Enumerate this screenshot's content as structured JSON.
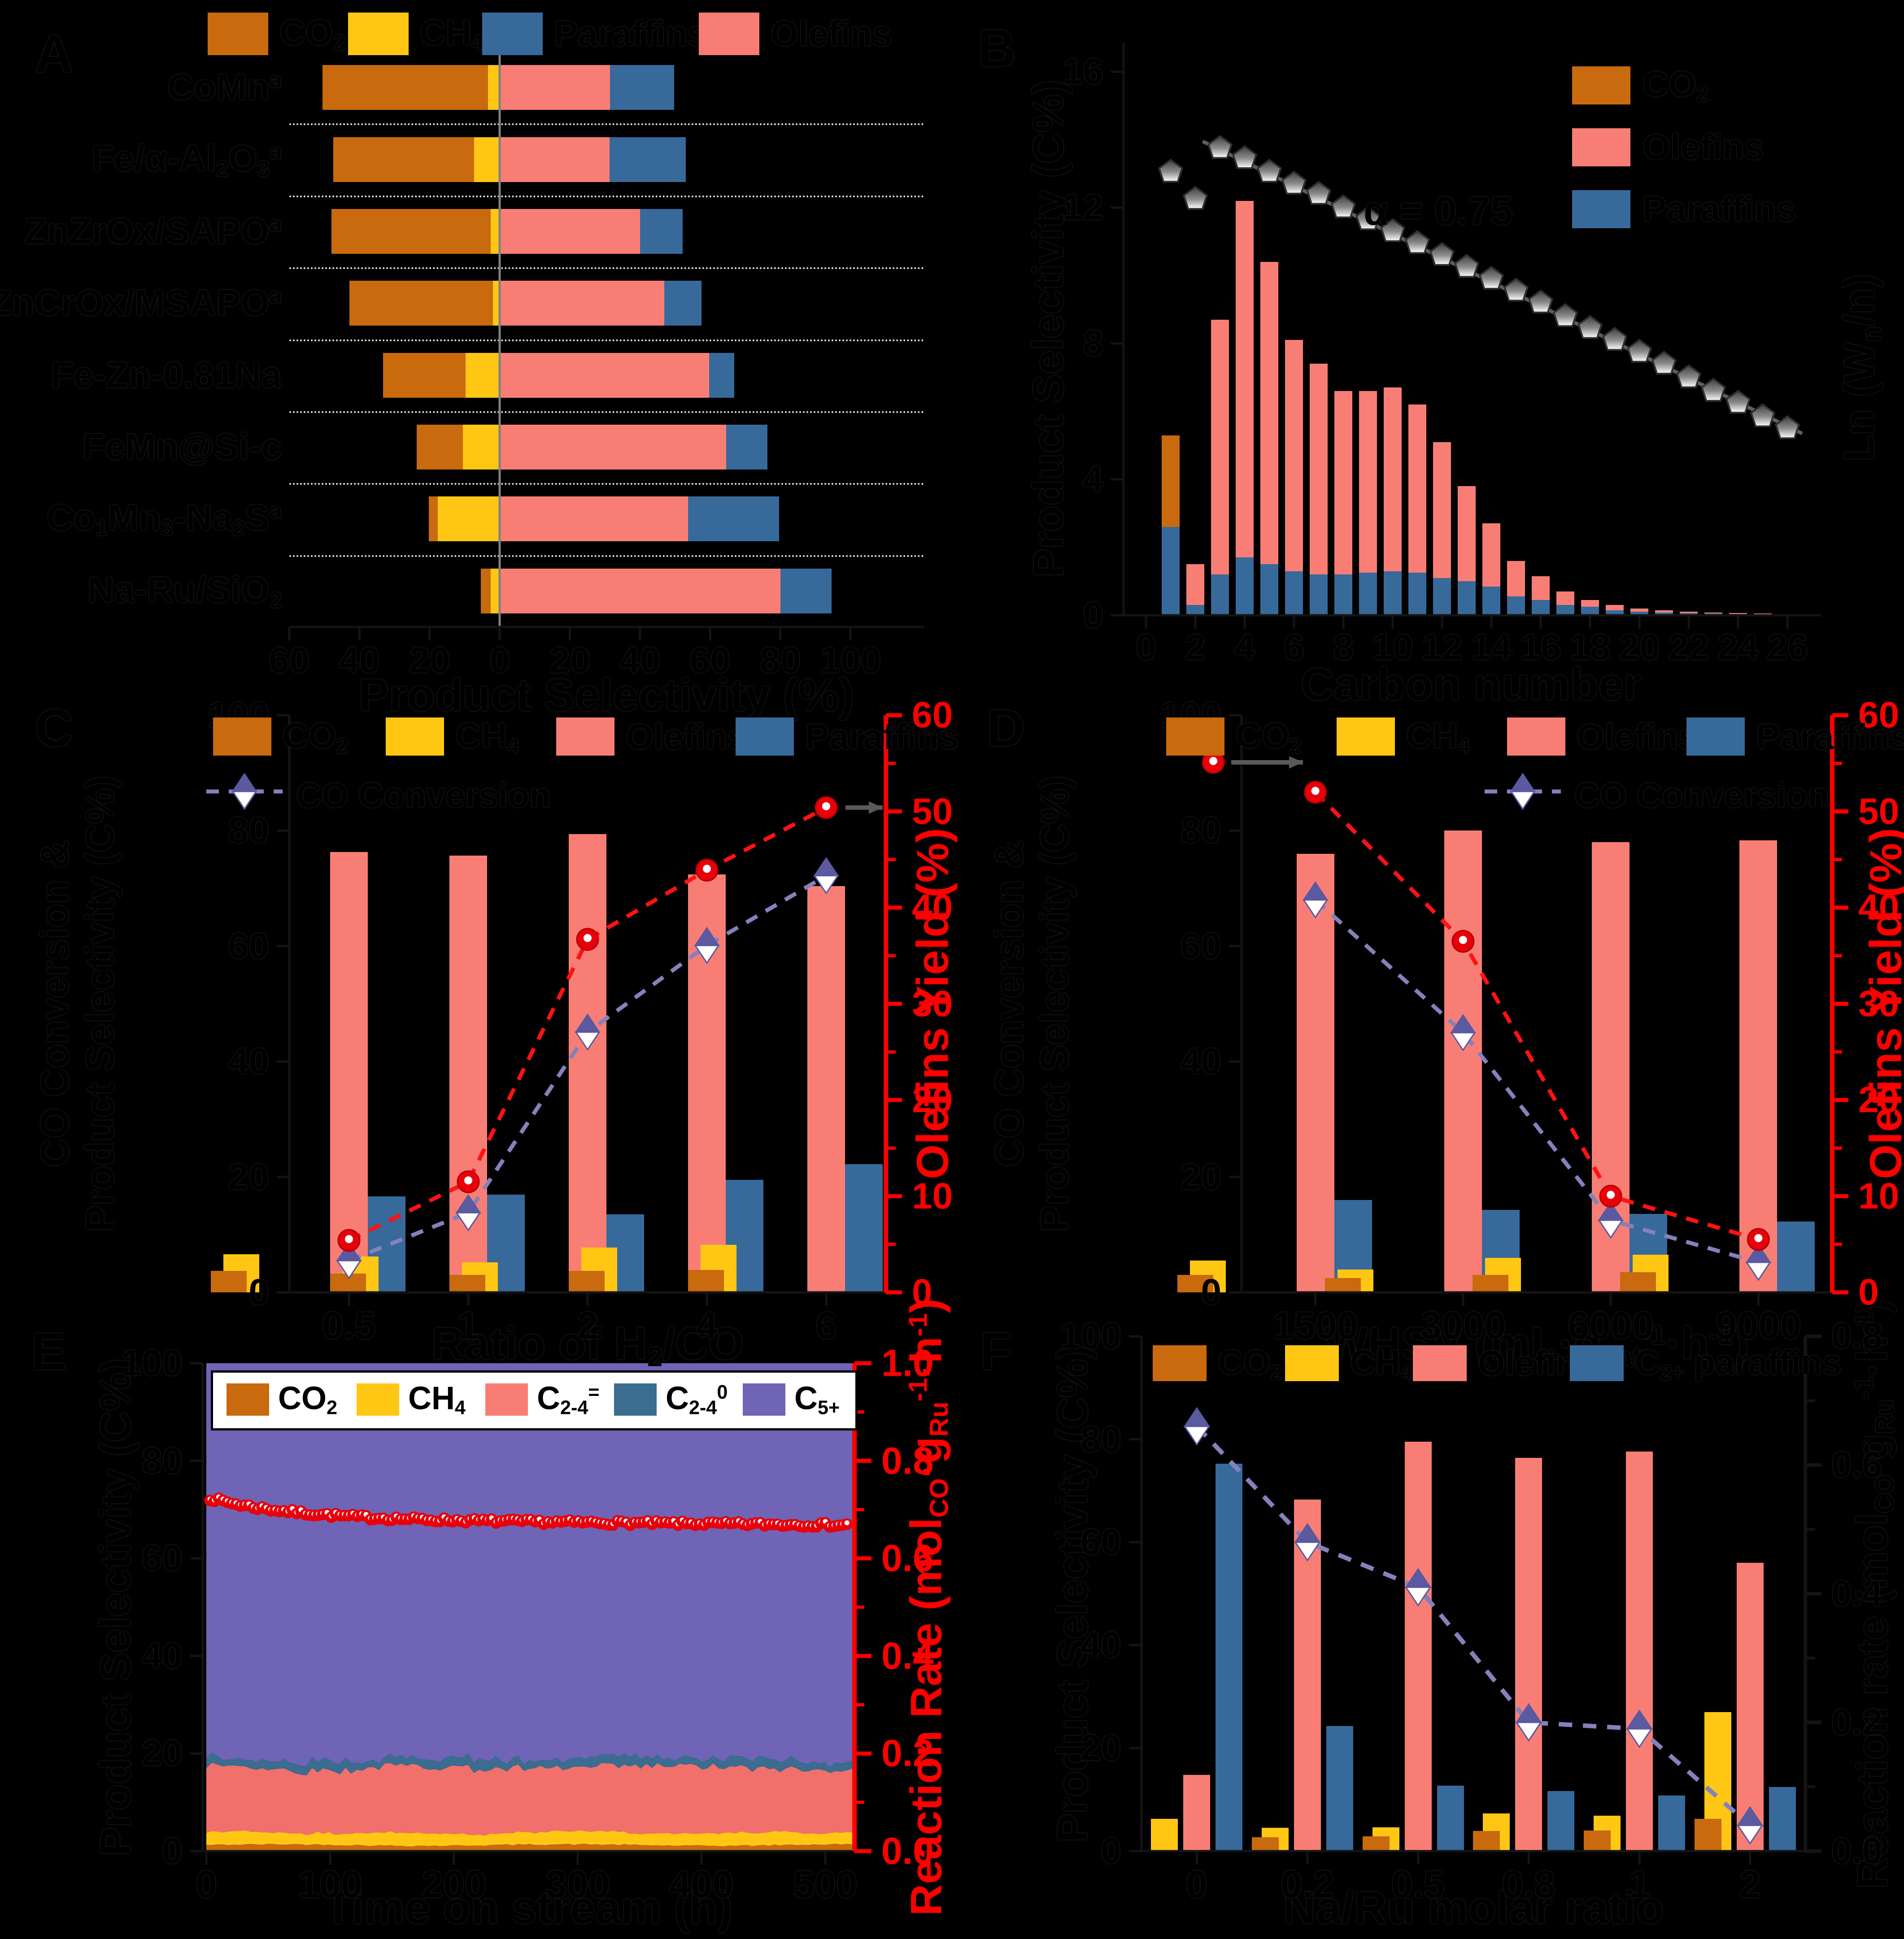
{
  "figure": {
    "background": "#000000"
  },
  "colors": {
    "co2": "#C86A0D",
    "ch4": "#FFC714",
    "olefins": "#F87E75",
    "paraffins": "#38699B",
    "c5plus": "#6F64B6",
    "c24_paraffin_band": "#3A6D8F",
    "conversion_line": "#8481BC",
    "diamond_fill": "#5B59A0",
    "yield_line": "#FF1212",
    "marker_red": "#E8000B",
    "axis_red": "#FF0000",
    "asf_gray": "#5E5E5E",
    "arrow_gray": "#595959",
    "zero_line_gray": "#808080"
  },
  "chart_data": [
    {
      "id": "A",
      "letter": "A",
      "type": "bar",
      "orientation": "horizontal-diverging",
      "xlabel": "Product Selectivity (%)",
      "x_ticks": [
        -60,
        -40,
        -20,
        0,
        20,
        40,
        60,
        80,
        100
      ],
      "x_tick_labels": [
        "60",
        "40",
        "20",
        "0",
        "20",
        "40",
        "60",
        "80",
        "100"
      ],
      "legend": [
        {
          "label": "CO_{2}",
          "color": "co2"
        },
        {
          "label": "CH_{4}",
          "color": "ch4"
        },
        {
          "label": "Paraffins",
          "color": "paraffins"
        },
        {
          "label": "Olefins",
          "color": "olefins"
        }
      ],
      "categories": [
        "CoMn^{a}",
        "Fe/α-Al_{2}O_{3}^{a}",
        "ZnZrOx/SAPO^{a}",
        "ZnCrOx/MSAPO^{a}",
        "Fe-Zn-0.81Na",
        "FeMn@Si-c",
        "Co_{1}Mn_{3}-Na_{2}S^{a}",
        "Na-Ru/SiO_{2}"
      ],
      "series": {
        "CO2": [
          47.2,
          40.1,
          45.4,
          40.9,
          23.5,
          13.1,
          2.6,
          2.8
        ],
        "CH4": [
          3.3,
          7.3,
          2.6,
          1.9,
          9.7,
          10.5,
          17.6,
          2.6
        ],
        "Olefins": [
          31.5,
          31.3,
          40.0,
          46.9,
          59.7,
          64.6,
          53.7,
          80.0
        ],
        "Paraffins": [
          18.2,
          21.8,
          12.2,
          10.6,
          7.2,
          11.8,
          26.0,
          14.6
        ]
      }
    },
    {
      "id": "B",
      "letter": "B",
      "type": "bar",
      "subtype": "stacked-with-asf-scatter",
      "xlabel": "Carbon number",
      "ylabel": "Product Selectivity (C%)",
      "ylabel_right": "Ln (W_{n}/n)",
      "annotation": "α = 0.75",
      "y_ticks": [
        0,
        4,
        8,
        12,
        16
      ],
      "x_ticks": [
        0,
        2,
        4,
        6,
        8,
        10,
        12,
        14,
        16,
        18,
        20,
        22,
        24,
        26
      ],
      "legend": [
        {
          "label": "CO_{2}",
          "color": "co2"
        },
        {
          "label": "Olefins",
          "color": "olefins"
        },
        {
          "label": "Paraffins",
          "color": "paraffins"
        }
      ],
      "carbon_numbers": [
        1,
        2,
        3,
        4,
        5,
        6,
        7,
        8,
        9,
        10,
        11,
        12,
        13,
        14,
        15,
        16,
        17,
        18,
        19,
        20,
        21,
        22,
        23,
        24,
        25,
        26
      ],
      "paraffins": [
        2.6,
        0.3,
        1.2,
        1.7,
        1.5,
        1.3,
        1.2,
        1.2,
        1.25,
        1.3,
        1.25,
        1.1,
        1.0,
        0.85,
        0.55,
        0.45,
        0.3,
        0.25,
        0.15,
        0.1,
        0.08,
        0.06,
        0.05,
        0.04,
        0.03,
        0.02
      ],
      "olefins": [
        0,
        1.2,
        7.5,
        10.5,
        8.9,
        6.8,
        6.2,
        5.4,
        5.35,
        5.4,
        4.95,
        4.0,
        2.8,
        1.85,
        1.05,
        0.7,
        0.4,
        0.2,
        0.15,
        0.1,
        0.06,
        0.04,
        0.03,
        0.02,
        0.02,
        0.01
      ],
      "co2_on_c1": 2.7,
      "asf_points": [
        [
          1,
          13.05
        ],
        [
          2,
          12.25
        ],
        [
          3,
          13.75
        ],
        [
          4,
          13.45
        ],
        [
          5,
          13.05
        ],
        [
          6,
          12.7
        ],
        [
          7,
          12.4
        ],
        [
          8,
          12.0
        ],
        [
          9,
          11.65
        ],
        [
          10,
          11.3
        ],
        [
          11,
          10.95
        ],
        [
          12,
          10.6
        ],
        [
          13,
          10.25
        ],
        [
          14,
          9.9
        ],
        [
          15,
          9.55
        ],
        [
          16,
          9.2
        ],
        [
          17,
          8.8
        ],
        [
          18,
          8.45
        ],
        [
          19,
          8.1
        ],
        [
          20,
          7.75
        ],
        [
          21,
          7.4
        ],
        [
          22,
          7.0
        ],
        [
          23,
          6.6
        ],
        [
          24,
          6.25
        ],
        [
          25,
          5.85
        ],
        [
          26,
          5.5
        ]
      ],
      "asf_line": {
        "x1": 2.3,
        "y1": 13.95,
        "x2": 26.6,
        "y2": 5.35
      }
    },
    {
      "id": "C",
      "letter": "C",
      "type": "bar",
      "subtype": "grouped-dual-axis",
      "xlabel": "Ratio of H_{2}/CO",
      "ylabel_left_line1": "CO Conversion &",
      "ylabel_left_line2": "Product Selectivity (C%)",
      "ylabel_right": "Olefins Yield (%)",
      "y_ticks_left": [
        0,
        20,
        40,
        60,
        80,
        100
      ],
      "y_ticks_right": [
        0,
        10,
        20,
        30,
        40,
        50,
        60
      ],
      "categories": [
        "0.5",
        "1",
        "2",
        "4",
        "6"
      ],
      "legend": [
        {
          "label": "CO_{2}",
          "color": "co2"
        },
        {
          "label": "CH_{4}",
          "color": "ch4"
        },
        {
          "label": "Olefins",
          "color": "olefins"
        },
        {
          "label": "Paraffins",
          "color": "paraffins"
        }
      ],
      "legend2_label": "CO Conversion",
      "series": {
        "CO2": [
          3.7,
          3.3,
          3.0,
          3.7,
          3.9
        ],
        "CH4": [
          6.6,
          6.2,
          5.2,
          7.8,
          8.2
        ],
        "Olefins": [
          76.3,
          75.7,
          79.4,
          72.4,
          70.4
        ],
        "Paraffins": [
          16.6,
          16.9,
          13.5,
          19.5,
          22.2
        ]
      },
      "co_conversion": [
        5.5,
        13.8,
        45.1,
        60.1,
        72.2
      ],
      "olefins_yield": [
        5.4,
        11.5,
        36.7,
        43.9,
        50.4
      ]
    },
    {
      "id": "D",
      "letter": "D",
      "type": "bar",
      "subtype": "grouped-dual-axis",
      "xlabel": "WHSV (mL·g_{cat}^{-1}·h^{-1})",
      "ylabel_left_line1": "CO Conversion &",
      "ylabel_left_line2": "Product Selectivity (C%)",
      "ylabel_right": "Olefins Yield (%)",
      "y_ticks_left": [
        0,
        20,
        40,
        60,
        80,
        100
      ],
      "y_ticks_right": [
        0,
        10,
        20,
        30,
        40,
        50,
        60
      ],
      "categories": [
        "1500",
        "3000",
        "6000",
        "9000"
      ],
      "legend": [
        {
          "label": "CO_{2}",
          "color": "co2"
        },
        {
          "label": "CH_{4}",
          "color": "ch4"
        },
        {
          "label": "Olefins",
          "color": "olefins"
        },
        {
          "label": "Paraffins",
          "color": "paraffins"
        }
      ],
      "legend2_label": "CO Conversion",
      "series": {
        "CO2": [
          3.0,
          2.5,
          3.0,
          3.5
        ],
        "CH4": [
          5.5,
          4.0,
          6.0,
          6.5
        ],
        "Olefins": [
          76.0,
          80.0,
          78.0,
          78.3
        ],
        "Paraffins": [
          16.0,
          14.3,
          13.6,
          12.3
        ]
      },
      "co_conversion": [
        68,
        45,
        12.5,
        5.2
      ],
      "olefins_yield": [
        52,
        36.5,
        10,
        5.5
      ]
    },
    {
      "id": "E",
      "letter": "E",
      "type": "area",
      "subtype": "stacked-area-with-rate-scatter",
      "xlabel": "Time on stream (h)",
      "ylabel": "Product Selectivity (C%)",
      "ylabel_right": "Reaction Rate (mol_{CO}·g_{Ru}^{-1}·h^{-1})",
      "y_ticks_left": [
        0,
        20,
        40,
        60,
        80,
        100
      ],
      "y_ticks_right": [
        "0.0",
        "0.2",
        "0.4",
        "0.6",
        "0.8",
        "1.0"
      ],
      "x_ticks": [
        0,
        100,
        200,
        300,
        400,
        500
      ],
      "time_range": [
        0,
        523
      ],
      "legend": [
        {
          "label": "CO_{2}",
          "color": "co2"
        },
        {
          "label": "CH_{4}",
          "color": "ch4"
        },
        {
          "label": "C_{2-4}^{=}",
          "color": "olefins"
        },
        {
          "label": "C_{2-4}^{0}",
          "color": "c24_paraffin_band"
        },
        {
          "label": "C_{5+}",
          "color": "c5plus"
        }
      ],
      "bands_mean": {
        "CO2": 1.3,
        "CH4": 2.5,
        "C2-4_olefins": 13.3,
        "C2-4_paraffins": 1.8,
        "C5plus": "balance to 100"
      },
      "reaction_rate": {
        "start": 0.725,
        "settled": 0.68,
        "end": 0.668
      }
    },
    {
      "id": "F",
      "letter": "F",
      "type": "bar",
      "subtype": "grouped-dual-axis",
      "xlabel": "Na/Ru molar ratio",
      "ylabel": "Product Selectivity (C%)",
      "ylabel_right": "Reaction rate (mol_{CO}·g_{Ru}^{-1}·h^{-1})",
      "y_ticks_left": [
        0,
        20,
        40,
        60,
        80,
        100
      ],
      "y_ticks_right": [
        "0.0",
        "0.2",
        "0.4",
        "0.6",
        "0.8"
      ],
      "categories": [
        "0",
        "0.2",
        "0.5",
        "0.8",
        "1",
        "2"
      ],
      "legend": [
        {
          "label": "CO_{2}",
          "color": "co2"
        },
        {
          "label": "CH_{4}",
          "color": "ch4"
        },
        {
          "label": "Olefins",
          "color": "olefins"
        },
        {
          "label": "C_{2+} paraffins",
          "color": "paraffins"
        }
      ],
      "series": {
        "CO2": [
          0,
          2.7,
          2.9,
          3.9,
          4.0,
          6.3
        ],
        "CH4": [
          6.3,
          4.5,
          4.6,
          7.3,
          6.9,
          27.0
        ],
        "Olefins": [
          14.8,
          68.3,
          79.5,
          76.4,
          77.6,
          56.0
        ],
        "C2plus_paraffins": [
          75.3,
          24.3,
          12.7,
          11.7,
          10.8,
          12.5
        ]
      },
      "reaction_rate": [
        0.66,
        0.48,
        0.41,
        0.2,
        0.19,
        0.04
      ]
    }
  ]
}
